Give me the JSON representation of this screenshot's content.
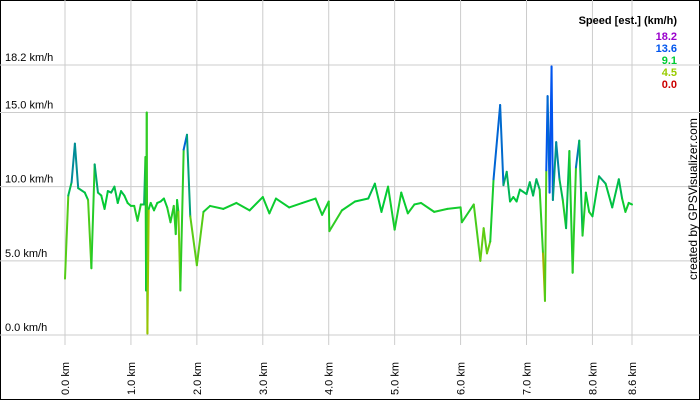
{
  "chart_data": {
    "type": "line",
    "legend": {
      "title": "Speed [est.] (km/h)",
      "entries": [
        {
          "label": "18.2",
          "color": "#9900cc"
        },
        {
          "label": "13.6",
          "color": "#0055ee"
        },
        {
          "label": "9.1",
          "color": "#00cc33"
        },
        {
          "label": "4.5",
          "color": "#99cc00"
        },
        {
          "label": "0.0",
          "color": "#cc0000"
        }
      ],
      "placement": "top-right"
    },
    "y_ticks": [
      {
        "value": 0.0,
        "label": "0.0 km/h"
      },
      {
        "value": 5.0,
        "label": "5.0 km/h"
      },
      {
        "value": 10.0,
        "label": "10.0 km/h"
      },
      {
        "value": 15.0,
        "label": "15.0 km/h"
      },
      {
        "value": 18.2,
        "label": "18.2 km/h"
      }
    ],
    "x_ticks": [
      {
        "value": 0.0,
        "label": "0.0 km"
      },
      {
        "value": 1.0,
        "label": "1.0 km"
      },
      {
        "value": 2.0,
        "label": "2.0 km"
      },
      {
        "value": 3.0,
        "label": "3.0 km"
      },
      {
        "value": 4.0,
        "label": "4.0 km"
      },
      {
        "value": 5.0,
        "label": "5.0 km"
      },
      {
        "value": 6.0,
        "label": "6.0 km"
      },
      {
        "value": 7.0,
        "label": "7.0 km"
      },
      {
        "value": 8.0,
        "label": "8.0 km"
      },
      {
        "value": 8.6,
        "label": "8.6 km"
      }
    ],
    "xlim": [
      0,
      8.6
    ],
    "ylim": [
      0,
      18.2
    ],
    "grid": true,
    "x": [
      0.0,
      0.05,
      0.1,
      0.15,
      0.2,
      0.3,
      0.35,
      0.4,
      0.45,
      0.5,
      0.55,
      0.6,
      0.65,
      0.7,
      0.75,
      0.8,
      0.85,
      0.9,
      0.95,
      1.0,
      1.05,
      1.1,
      1.15,
      1.2,
      1.22,
      1.23,
      1.24,
      1.25,
      1.27,
      1.3,
      1.35,
      1.4,
      1.45,
      1.5,
      1.55,
      1.6,
      1.65,
      1.68,
      1.7,
      1.72,
      1.75,
      1.8,
      1.85,
      1.9,
      2.0,
      2.1,
      2.2,
      2.4,
      2.6,
      2.8,
      3.0,
      3.1,
      3.2,
      3.4,
      3.6,
      3.8,
      3.9,
      4.0,
      4.01,
      4.2,
      4.4,
      4.6,
      4.7,
      4.8,
      4.9,
      5.0,
      5.1,
      5.2,
      5.3,
      5.4,
      5.6,
      5.8,
      6.0,
      6.02,
      6.2,
      6.3,
      6.35,
      6.4,
      6.45,
      6.5,
      6.6,
      6.65,
      6.7,
      6.75,
      6.8,
      6.85,
      6.9,
      7.0,
      7.05,
      7.1,
      7.15,
      7.2,
      7.25,
      7.28,
      7.3,
      7.32,
      7.35,
      7.38,
      7.4,
      7.45,
      7.5,
      7.55,
      7.6,
      7.65,
      7.7,
      7.75,
      7.8,
      7.85,
      7.9,
      7.95,
      8.0,
      8.1,
      8.2,
      8.3,
      8.4,
      8.45,
      8.5,
      8.55,
      8.6
    ],
    "series": [
      {
        "values": [
          3.8,
          9.4,
          10.3,
          12.9,
          9.9,
          9.6,
          9.1,
          4.5,
          11.5,
          9.6,
          9.4,
          8.5,
          9.7,
          9.6,
          10.0,
          8.9,
          9.7,
          9.4,
          8.9,
          8.7,
          8.7,
          7.7,
          8.8,
          8.8,
          12.0,
          3.0,
          15.0,
          0.1,
          8.5,
          8.9,
          8.4,
          8.9,
          9.0,
          9.2,
          8.6,
          7.6,
          8.7,
          6.8,
          9.1,
          8.3,
          3.0,
          12.5,
          13.5,
          8.0,
          4.7,
          8.3,
          8.7,
          8.5,
          8.9,
          8.4,
          9.3,
          8.2,
          9.2,
          8.6,
          8.9,
          9.2,
          8.1,
          9.0,
          7.0,
          8.4,
          9.0,
          9.2,
          10.2,
          8.3,
          10.0,
          7.1,
          9.6,
          8.2,
          8.8,
          8.9,
          8.3,
          8.5,
          8.6,
          7.6,
          8.8,
          5.0,
          7.2,
          5.5,
          6.3,
          10.5,
          15.5,
          10.1,
          11.0,
          9.0,
          9.3,
          9.0,
          9.8,
          9.5,
          10.3,
          9.4,
          10.5,
          9.8,
          5.5,
          2.3,
          11.1,
          16.1,
          9.6,
          18.1,
          9.1,
          13.0,
          10.5,
          9.1,
          7.2,
          12.4,
          4.2,
          11.3,
          13.1,
          6.7,
          9.6,
          8.3,
          8.0,
          10.7,
          10.2,
          8.6,
          10.5,
          9.2,
          8.3,
          8.9,
          8.8
        ]
      }
    ]
  },
  "credit": "created by GPSVisualizer.com"
}
